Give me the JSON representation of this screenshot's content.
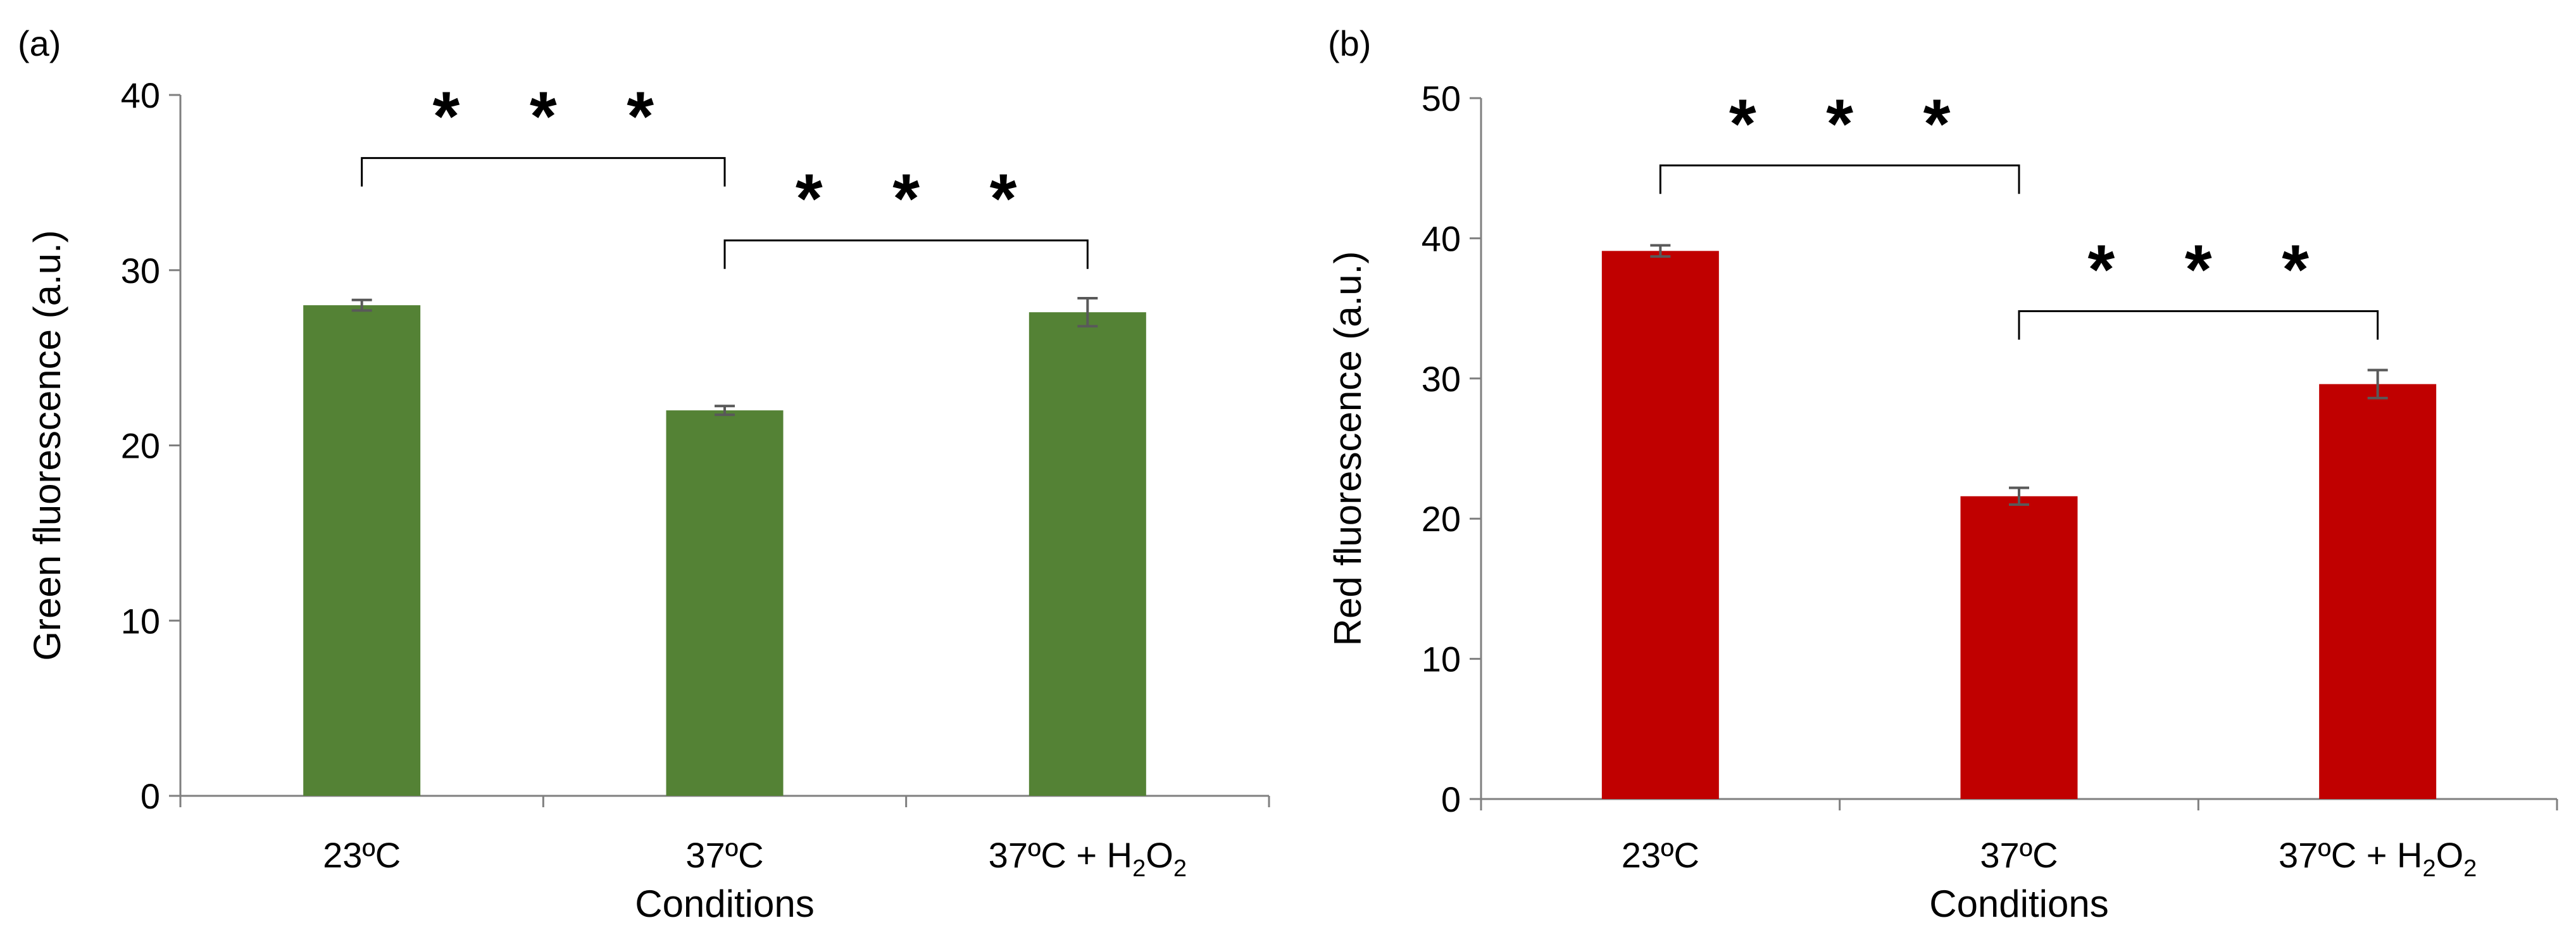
{
  "chart_data": [
    {
      "type": "bar",
      "panel_label": "(a)",
      "categories": [
        "23ºC",
        "37ºC",
        "37ºC + H2O2"
      ],
      "values": [
        28.0,
        22.0,
        27.6
      ],
      "errors": [
        0.3,
        0.25,
        0.8
      ],
      "xlabel": "Conditions",
      "ylabel": "Green fluorescence (a.u.)",
      "ylim": [
        0,
        40
      ],
      "yticks": [
        0,
        10,
        20,
        30,
        40
      ],
      "color": "#548235",
      "grid": false,
      "significance": [
        {
          "from": 0,
          "to": 1,
          "label": "* * *",
          "level": 36.4
        },
        {
          "from": 1,
          "to": 2,
          "label": "* * *",
          "level": 31.7
        }
      ]
    },
    {
      "type": "bar",
      "panel_label": "(b)",
      "categories": [
        "23ºC",
        "37ºC",
        "37ºC + H2O2"
      ],
      "values": [
        39.1,
        21.6,
        29.6
      ],
      "errors": [
        0.4,
        0.6,
        1.0
      ],
      "xlabel": "Conditions",
      "ylabel": "Red fluorescence (a.u.)",
      "ylim": [
        0,
        50
      ],
      "yticks": [
        0,
        10,
        20,
        30,
        40,
        50
      ],
      "color": "#c00000",
      "grid": false,
      "significance": [
        {
          "from": 0,
          "to": 1,
          "label": "* * *",
          "level": 45.2
        },
        {
          "from": 1,
          "to": 2,
          "label": "* * *",
          "level": 34.8
        }
      ]
    }
  ]
}
